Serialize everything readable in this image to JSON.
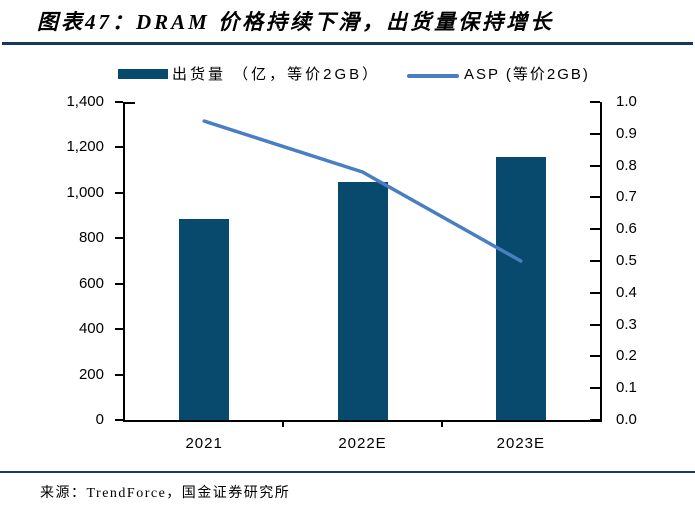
{
  "header": {
    "title": "图表47：DRAM 价格持续下滑，出货量保持增长"
  },
  "footer": {
    "source": "来源：TrendForce，国金证券研究所"
  },
  "colors": {
    "bar": "#084a6d",
    "line": "#4a7ec2",
    "rule": "#17375d",
    "footer_rule": "#1b3a5e",
    "axis": "#000000",
    "text": "#000000"
  },
  "chart_data": {
    "type": "bar+line",
    "title": "图表47：DRAM 价格持续下滑，出货量保持增长",
    "categories": [
      "2021",
      "2022E",
      "2023E"
    ],
    "series": [
      {
        "name": "出货量 （亿，等价2GB）",
        "type": "bar",
        "axis": "left",
        "values": [
          885,
          1050,
          1160
        ]
      },
      {
        "name": "ASP (等价2GB)",
        "type": "line",
        "axis": "right",
        "values": [
          0.94,
          0.78,
          0.5
        ]
      }
    ],
    "left_axis": {
      "min": 0,
      "max": 1400,
      "step": 200,
      "tick_labels": [
        "0",
        "200",
        "400",
        "600",
        "800",
        "1,000",
        "1,200",
        "1,400"
      ]
    },
    "right_axis": {
      "min": 0.0,
      "max": 1.0,
      "step": 0.1,
      "decimals": 1,
      "tick_labels": [
        "0.0",
        "0.1",
        "0.2",
        "0.3",
        "0.4",
        "0.5",
        "0.6",
        "0.7",
        "0.8",
        "0.9",
        "1.0"
      ]
    },
    "grid": false,
    "legend_position": "top",
    "source_note": "来源：TrendForce，国金证券研究所"
  }
}
